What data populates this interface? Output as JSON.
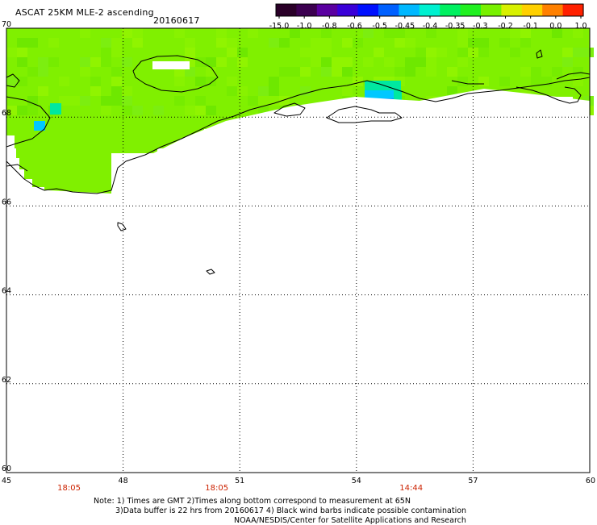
{
  "header": {
    "title": "ASCAT 25KM MLE-2 ascending",
    "date": "20160617"
  },
  "colorbar": {
    "labels": [
      "-15.0",
      "-1.0",
      "-0.8",
      "-0.6",
      "-0.5",
      "-0.45",
      "-0.4",
      "-0.35",
      "-0.3",
      "-0.2",
      "-0.1",
      "0.0",
      "1.0"
    ],
    "colors": [
      "#2a0028",
      "#3c0050",
      "#5a00a0",
      "#3a00d8",
      "#0010ff",
      "#0060ff",
      "#00b8ff",
      "#00f0d0",
      "#00f060",
      "#20f020",
      "#78f000",
      "#d8f000",
      "#ffd000",
      "#ff8000",
      "#ff2000"
    ]
  },
  "map": {
    "lat_labels": [
      "70",
      "68",
      "66",
      "64",
      "62",
      "60"
    ],
    "lon_labels": [
      "45",
      "48",
      "51",
      "54",
      "57",
      "60"
    ],
    "lat_range": [
      60,
      70
    ],
    "lon_range": [
      45,
      60
    ],
    "data_color": "#80f000",
    "anomaly_colors": [
      "#00e8a0",
      "#00c8ff",
      "#0090ff",
      "#0040ff"
    ]
  },
  "times": [
    {
      "label": "18:05",
      "lon": 46.6
    },
    {
      "label": "18:05",
      "lon": 50.4
    },
    {
      "label": "14:44",
      "lon": 55.4
    }
  ],
  "notes": {
    "line1": "Note: 1) Times are GMT 2)Times along bottom correspond to measurement at 65N",
    "line2": "3)Data buffer is 22 hrs from 20160617 4) Black wind barbs indicate possible contamination",
    "line3": "NOAA/NESDIS/Center for Satellite Applications and Research"
  }
}
